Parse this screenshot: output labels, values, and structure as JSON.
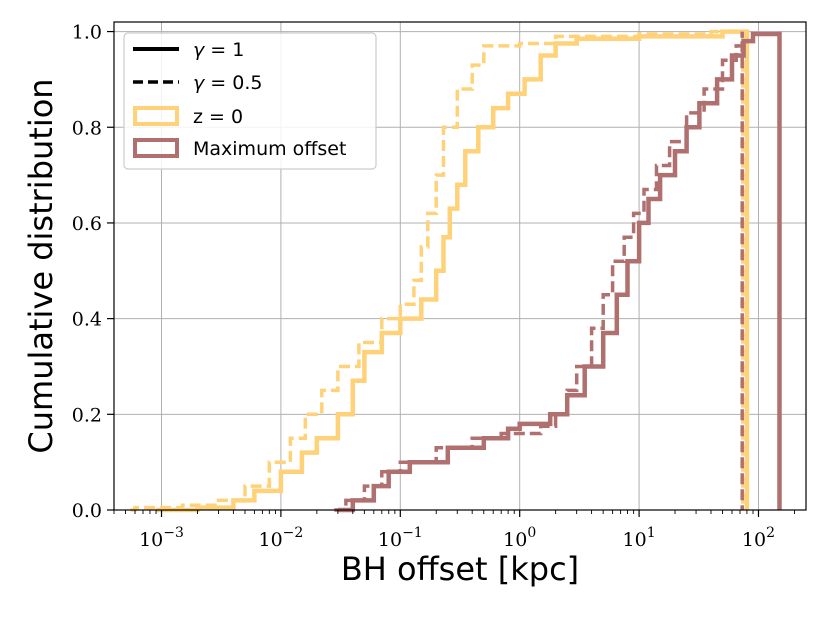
{
  "chart_data": {
    "type": "line",
    "subtype": "cumulative-step",
    "xlabel": "BH offset [kpc]",
    "ylabel": "Cumulative distribution",
    "xscale": "log",
    "xlim": [
      0.0004,
      250
    ],
    "ylim": [
      0.0,
      1.02
    ],
    "grid": true,
    "x_ticks": [
      {
        "value": 0.001,
        "mant": "10",
        "exp": "−3"
      },
      {
        "value": 0.01,
        "mant": "10",
        "exp": "−2"
      },
      {
        "value": 0.1,
        "mant": "10",
        "exp": "−1"
      },
      {
        "value": 1,
        "mant": "10",
        "exp": "0"
      },
      {
        "value": 10,
        "mant": "10",
        "exp": "1"
      },
      {
        "value": 100,
        "mant": "10",
        "exp": "2"
      }
    ],
    "y_ticks": [
      {
        "value": 0.0,
        "label": "0.0"
      },
      {
        "value": 0.2,
        "label": "0.2"
      },
      {
        "value": 0.4,
        "label": "0.4"
      },
      {
        "value": 0.6,
        "label": "0.6"
      },
      {
        "value": 0.8,
        "label": "0.8"
      },
      {
        "value": 1.0,
        "label": "1.0"
      }
    ],
    "legend": {
      "placement": "top-left",
      "entries": [
        {
          "label_prefix": "γ",
          "label_rest": " = 1",
          "style": "solid",
          "color": "#000000"
        },
        {
          "label_prefix": "γ",
          "label_rest": " = 0.5",
          "style": "dashed",
          "color": "#000000"
        },
        {
          "label": "z = 0",
          "style": "box",
          "color": "#ffd27a"
        },
        {
          "label": "Maximum offset",
          "style": "box",
          "color": "#b07070"
        }
      ]
    },
    "series": [
      {
        "name": "z = 0",
        "gamma": "0.5",
        "style": "dashed",
        "color": "#ffd27a",
        "points": [
          [
            0.00055,
            0
          ],
          [
            0.0006,
            0.005
          ],
          [
            0.0015,
            0.01
          ],
          [
            0.003,
            0.02
          ],
          [
            0.005,
            0.05
          ],
          [
            0.008,
            0.1
          ],
          [
            0.012,
            0.15
          ],
          [
            0.016,
            0.2
          ],
          [
            0.022,
            0.25
          ],
          [
            0.03,
            0.3
          ],
          [
            0.045,
            0.35
          ],
          [
            0.07,
            0.4
          ],
          [
            0.1,
            0.43
          ],
          [
            0.13,
            0.48
          ],
          [
            0.15,
            0.55
          ],
          [
            0.17,
            0.62
          ],
          [
            0.2,
            0.7
          ],
          [
            0.23,
            0.8
          ],
          [
            0.3,
            0.88
          ],
          [
            0.4,
            0.93
          ],
          [
            0.5,
            0.97
          ],
          [
            1.0,
            0.975
          ],
          [
            2.0,
            0.99
          ],
          [
            10,
            0.995
          ],
          [
            40,
            1.0
          ],
          [
            74,
            1.0
          ],
          [
            74,
            0
          ]
        ]
      },
      {
        "name": "z = 0",
        "gamma": "1",
        "style": "solid",
        "color": "#ffd27a",
        "points": [
          [
            0.0009,
            0
          ],
          [
            0.002,
            0.005
          ],
          [
            0.004,
            0.02
          ],
          [
            0.006,
            0.04
          ],
          [
            0.01,
            0.08
          ],
          [
            0.015,
            0.12
          ],
          [
            0.02,
            0.15
          ],
          [
            0.03,
            0.2
          ],
          [
            0.04,
            0.27
          ],
          [
            0.05,
            0.33
          ],
          [
            0.07,
            0.37
          ],
          [
            0.1,
            0.4
          ],
          [
            0.15,
            0.44
          ],
          [
            0.2,
            0.5
          ],
          [
            0.23,
            0.57
          ],
          [
            0.26,
            0.63
          ],
          [
            0.3,
            0.68
          ],
          [
            0.35,
            0.75
          ],
          [
            0.45,
            0.8
          ],
          [
            0.6,
            0.84
          ],
          [
            0.8,
            0.87
          ],
          [
            1.1,
            0.9
          ],
          [
            1.5,
            0.95
          ],
          [
            2.0,
            0.975
          ],
          [
            3,
            0.985
          ],
          [
            10,
            0.99
          ],
          [
            50,
            1.0
          ],
          [
            80,
            1.0
          ],
          [
            80,
            0
          ]
        ]
      },
      {
        "name": "Maximum offset",
        "gamma": "0.5",
        "style": "dashed",
        "color": "#b07070",
        "points": [
          [
            0.028,
            0
          ],
          [
            0.035,
            0.02
          ],
          [
            0.05,
            0.05
          ],
          [
            0.07,
            0.08
          ],
          [
            0.1,
            0.1
          ],
          [
            0.2,
            0.13
          ],
          [
            0.4,
            0.15
          ],
          [
            0.7,
            0.16
          ],
          [
            1.0,
            0.16
          ],
          [
            1.5,
            0.175
          ],
          [
            2.0,
            0.2
          ],
          [
            2.5,
            0.25
          ],
          [
            3.0,
            0.3
          ],
          [
            4.0,
            0.38
          ],
          [
            5.0,
            0.45
          ],
          [
            6.0,
            0.52
          ],
          [
            7.5,
            0.57
          ],
          [
            9.0,
            0.62
          ],
          [
            11,
            0.67
          ],
          [
            14,
            0.72
          ],
          [
            18,
            0.77
          ],
          [
            25,
            0.83
          ],
          [
            35,
            0.88
          ],
          [
            50,
            0.94
          ],
          [
            65,
            0.97
          ],
          [
            73,
            1.0
          ],
          [
            73,
            0
          ]
        ]
      },
      {
        "name": "Maximum offset",
        "gamma": "1",
        "style": "solid",
        "color": "#b07070",
        "points": [
          [
            0.03,
            0
          ],
          [
            0.04,
            0.02
          ],
          [
            0.06,
            0.05
          ],
          [
            0.08,
            0.08
          ],
          [
            0.12,
            0.1
          ],
          [
            0.25,
            0.13
          ],
          [
            0.5,
            0.15
          ],
          [
            0.8,
            0.17
          ],
          [
            1.0,
            0.18
          ],
          [
            1.8,
            0.2
          ],
          [
            2.5,
            0.24
          ],
          [
            3.5,
            0.3
          ],
          [
            5.0,
            0.37
          ],
          [
            6.5,
            0.45
          ],
          [
            8.0,
            0.52
          ],
          [
            10,
            0.6
          ],
          [
            12,
            0.65
          ],
          [
            15,
            0.7
          ],
          [
            20,
            0.75
          ],
          [
            25,
            0.8
          ],
          [
            32,
            0.85
          ],
          [
            45,
            0.9
          ],
          [
            60,
            0.95
          ],
          [
            75,
            0.98
          ],
          [
            90,
            0.995
          ],
          [
            150,
            1.0
          ],
          [
            150,
            0
          ]
        ]
      }
    ]
  }
}
